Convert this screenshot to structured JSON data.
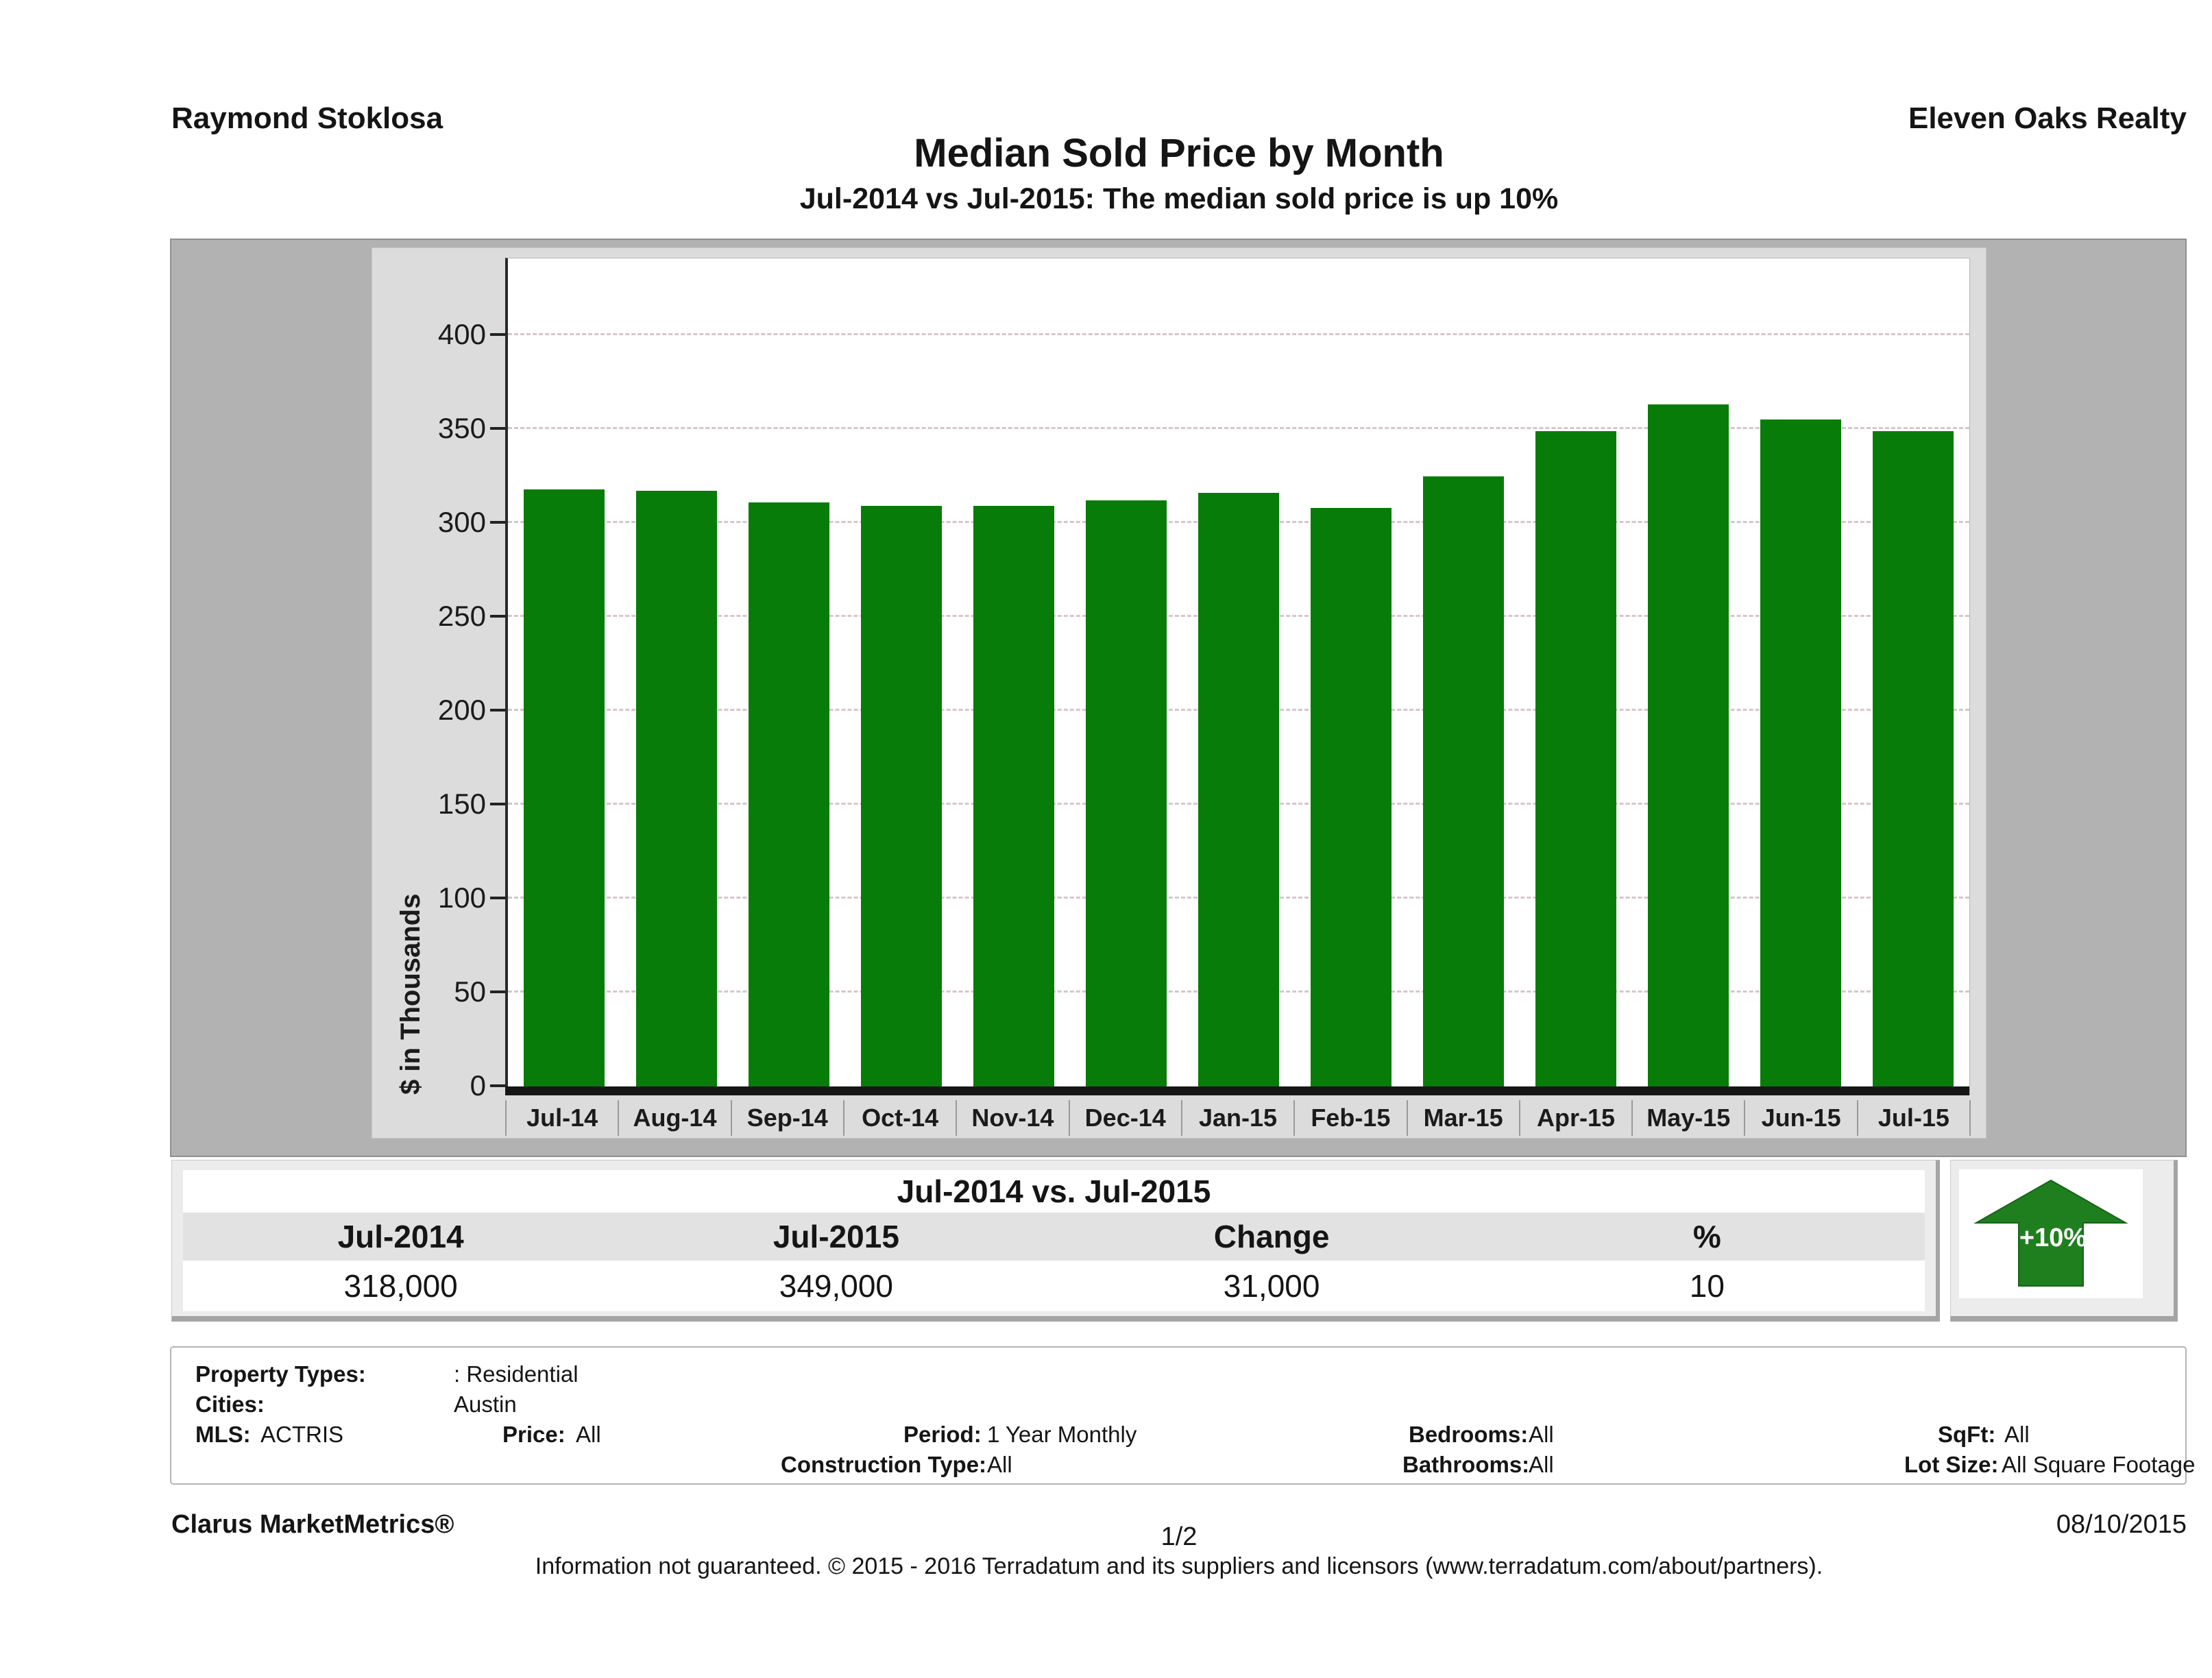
{
  "header": {
    "agent_name": "Raymond Stoklosa",
    "company": "Eleven Oaks Realty",
    "title": "Median Sold Price by Month",
    "subtitle": "Jul-2014 vs Jul-2015: The median sold price is up 10%"
  },
  "chart_data": {
    "type": "bar",
    "title": "Median Sold Price by Month",
    "xlabel": "",
    "ylabel": "$ in Thousands",
    "categories": [
      "Jul-14",
      "Aug-14",
      "Sep-14",
      "Oct-14",
      "Nov-14",
      "Dec-14",
      "Jan-15",
      "Feb-15",
      "Mar-15",
      "Apr-15",
      "May-15",
      "Jun-15",
      "Jul-15"
    ],
    "values": [
      318,
      317,
      311,
      309,
      309,
      312,
      316,
      308,
      325,
      349,
      363,
      355,
      349
    ],
    "yticks": [
      0,
      50,
      100,
      150,
      200,
      250,
      300,
      350,
      400
    ],
    "ylim": [
      0,
      435
    ],
    "grid": "horizontal-dashed",
    "legend_position": "none",
    "bar_color": "#087c08",
    "plot_background": "#ffffff",
    "panel_background": "#dcdcdc"
  },
  "summary_table": {
    "title": "Jul-2014 vs. Jul-2015",
    "columns": [
      "Jul-2014",
      "Jul-2015",
      "Change",
      "%"
    ],
    "row": [
      "318,000",
      "349,000",
      "31,000",
      "10"
    ]
  },
  "change_badge": {
    "label": "+10%",
    "direction": "up",
    "color": "#1f7f1f"
  },
  "filters": {
    "property_types_label": "Property Types:",
    "property_types_value": ": Residential",
    "cities_label": "Cities:",
    "cities_value": "Austin",
    "mls_label": "MLS:",
    "mls_value": "ACTRIS",
    "price_label": "Price:",
    "price_value": "All",
    "period_label": "Period:",
    "period_value": "1 Year Monthly",
    "construction_label": "Construction Type:",
    "construction_value": "All",
    "bedrooms_label": "Bedrooms:",
    "bedrooms_value": "All",
    "bathrooms_label": "Bathrooms:",
    "bathrooms_value": "All",
    "sqft_label": "SqFt:",
    "sqft_value": "All",
    "lot_label": "Lot Size:",
    "lot_value": "All Square Footage"
  },
  "footer": {
    "brand": "Clarus MarketMetrics®",
    "page": "1/2",
    "date": "08/10/2015",
    "disclaimer": "Information not guaranteed. © 2015 - 2016 Terradatum and its suppliers and licensors (www.terradatum.com/about/partners)."
  }
}
